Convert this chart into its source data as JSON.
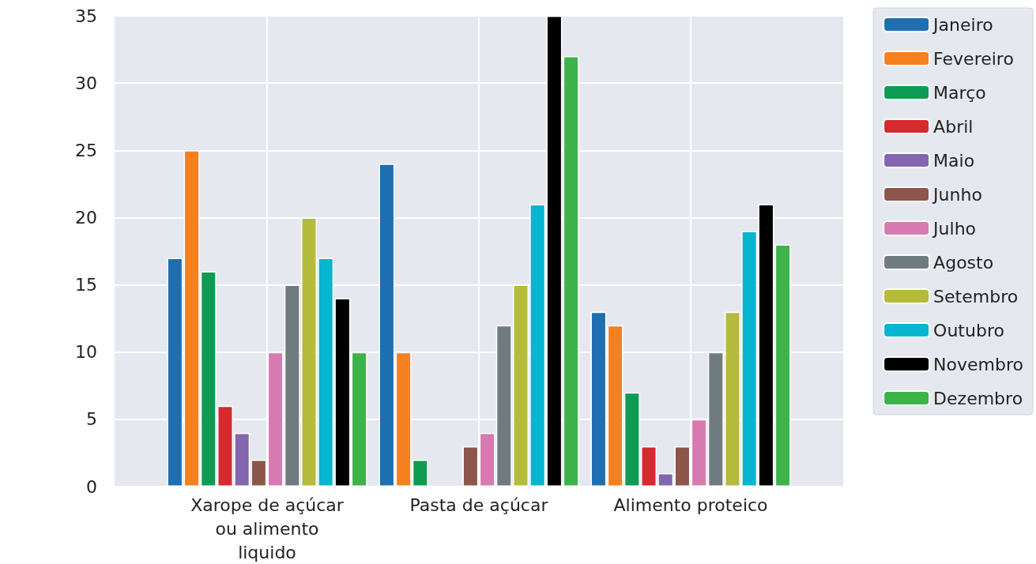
{
  "chart_data": {
    "type": "bar",
    "categories": [
      "Xarope de açúcar ou alimento liquido",
      "Pasta de açúcar",
      "Alimento proteico"
    ],
    "series": [
      {
        "name": "Janeiro",
        "color": "#1f6fb0",
        "values": [
          17,
          24,
          13
        ]
      },
      {
        "name": "Fevereiro",
        "color": "#f5801f",
        "values": [
          25,
          10,
          12
        ]
      },
      {
        "name": "Março",
        "color": "#0e9b53",
        "values": [
          16,
          2,
          7
        ]
      },
      {
        "name": "Abril",
        "color": "#d62a2e",
        "values": [
          6,
          null,
          3
        ]
      },
      {
        "name": "Maio",
        "color": "#8466ae",
        "values": [
          4,
          null,
          1
        ]
      },
      {
        "name": "Junho",
        "color": "#8c564b",
        "values": [
          2,
          3,
          3
        ]
      },
      {
        "name": "Julho",
        "color": "#d67ab1",
        "values": [
          10,
          4,
          5
        ]
      },
      {
        "name": "Agosto",
        "color": "#6f7b7f",
        "values": [
          15,
          12,
          10
        ]
      },
      {
        "name": "Setembro",
        "color": "#b5bb3a",
        "values": [
          20,
          15,
          13
        ]
      },
      {
        "name": "Outubro",
        "color": "#06b5d0",
        "values": [
          17,
          21,
          19
        ]
      },
      {
        "name": "Novembro",
        "color": "#000000",
        "values": [
          14,
          35,
          21
        ]
      },
      {
        "name": "Dezembro",
        "color": "#3db34a",
        "values": [
          10,
          32,
          18
        ]
      }
    ],
    "ylim": [
      0,
      35
    ],
    "yticks": [
      0,
      5,
      10,
      15,
      20,
      25,
      30,
      35
    ],
    "grid": true,
    "legend": "top right"
  }
}
